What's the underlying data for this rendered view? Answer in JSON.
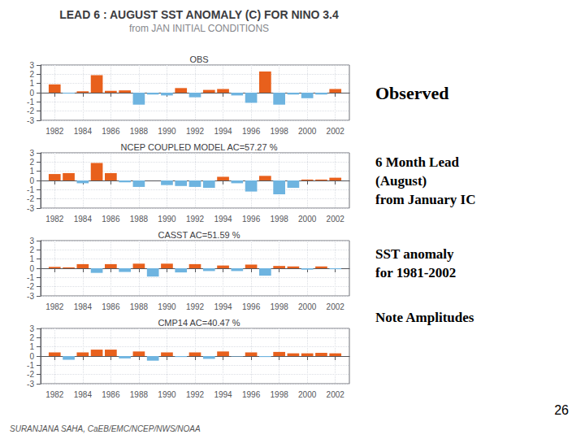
{
  "title": "LEAD 6 : AUGUST SST ANOMALY (C) FOR NINO 3.4",
  "subtitle": "from JAN INITIAL CONDITIONS",
  "annotations": [
    "Observed",
    "6 Month Lead\n(August)\nfrom January IC",
    "SST anomaly\nfor 1981-2002",
    "Note Amplitudes",
    "26",
    "SURANJANA SAHA, CaEB/EMC/NCEP/NWS/NOAA"
  ],
  "chart_data": [
    {
      "type": "bar",
      "title": "OBS",
      "x": [
        1982,
        1983,
        1984,
        1985,
        1986,
        1987,
        1988,
        1989,
        1990,
        1991,
        1992,
        1993,
        1994,
        1995,
        1996,
        1997,
        1998,
        1999,
        2000,
        2001,
        2002
      ],
      "values": [
        0.9,
        -0.1,
        0.15,
        1.9,
        0.2,
        0.25,
        -1.3,
        -0.2,
        -0.3,
        0.5,
        -0.5,
        0.3,
        0.4,
        -0.3,
        -1.1,
        2.3,
        -1.3,
        -0.2,
        -0.6,
        -0.2,
        0.4
      ],
      "colors": [
        "#e8601c",
        "#6eb4e0",
        "#e8601c",
        "#e8601c",
        "#e8601c",
        "#e8601c",
        "#6eb4e0",
        "#6eb4e0",
        "#6eb4e0",
        "#e8601c",
        "#6eb4e0",
        "#e8601c",
        "#e8601c",
        "#6eb4e0",
        "#6eb4e0",
        "#e8601c",
        "#6eb4e0",
        "#6eb4e0",
        "#6eb4e0",
        "#6eb4e0",
        "#e8601c"
      ],
      "xlim": [
        1981,
        2003
      ],
      "xticks": [
        1982,
        1984,
        1986,
        1988,
        1990,
        1992,
        1994,
        1996,
        1998,
        2000,
        2002
      ],
      "ylim": [
        -3,
        3
      ],
      "yticks": [
        -3,
        -2,
        -1,
        0,
        1,
        2,
        3
      ],
      "grid": true
    },
    {
      "type": "bar",
      "title": "NCEP COUPLED MODEL AC=57.27 %",
      "x": [
        1982,
        1983,
        1984,
        1985,
        1986,
        1987,
        1988,
        1989,
        1990,
        1991,
        1992,
        1993,
        1994,
        1995,
        1996,
        1997,
        1998,
        1999,
        2000,
        2001,
        2002
      ],
      "values": [
        0.7,
        0.8,
        -0.3,
        1.9,
        0.8,
        -0.2,
        -0.7,
        0.0,
        -0.5,
        -0.6,
        -0.7,
        -0.8,
        0.4,
        -0.3,
        -1.2,
        0.5,
        -1.5,
        -0.8,
        0.1,
        0.1,
        0.3
      ],
      "colors": [
        "#e8601c",
        "#e8601c",
        "#6eb4e0",
        "#e8601c",
        "#e8601c",
        "#6eb4e0",
        "#6eb4e0",
        "#e8601c",
        "#6eb4e0",
        "#6eb4e0",
        "#6eb4e0",
        "#6eb4e0",
        "#e8601c",
        "#6eb4e0",
        "#6eb4e0",
        "#e8601c",
        "#6eb4e0",
        "#6eb4e0",
        "#e8601c",
        "#e8601c",
        "#e8601c"
      ],
      "xlim": [
        1981,
        2003
      ],
      "xticks": [
        1982,
        1984,
        1986,
        1988,
        1990,
        1992,
        1994,
        1996,
        1998,
        2000,
        2002
      ],
      "ylim": [
        -3,
        3
      ],
      "yticks": [
        -3,
        -2,
        -1,
        0,
        1,
        2,
        3
      ],
      "grid": true
    },
    {
      "type": "bar",
      "title": "CASST AC=51.59 %",
      "x": [
        1982,
        1983,
        1984,
        1985,
        1986,
        1987,
        1988,
        1989,
        1990,
        1991,
        1992,
        1993,
        1994,
        1995,
        1996,
        1997,
        1998,
        1999,
        2000,
        2001,
        2002
      ],
      "values": [
        0.15,
        0.1,
        0.45,
        -0.5,
        0.45,
        -0.4,
        0.5,
        -0.9,
        0.5,
        -0.45,
        0.45,
        -0.3,
        0.3,
        -0.3,
        0.4,
        -0.8,
        0.25,
        0.2,
        -0.15,
        0.2,
        -0.1
      ],
      "colors": [
        "#e8601c",
        "#e8601c",
        "#e8601c",
        "#6eb4e0",
        "#e8601c",
        "#6eb4e0",
        "#e8601c",
        "#6eb4e0",
        "#e8601c",
        "#6eb4e0",
        "#e8601c",
        "#6eb4e0",
        "#e8601c",
        "#6eb4e0",
        "#e8601c",
        "#6eb4e0",
        "#e8601c",
        "#e8601c",
        "#6eb4e0",
        "#e8601c",
        "#6eb4e0"
      ],
      "xlim": [
        1981,
        2003
      ],
      "xticks": [
        1982,
        1984,
        1986,
        1988,
        1990,
        1992,
        1994,
        1996,
        1998,
        2000,
        2002
      ],
      "ylim": [
        -3,
        3
      ],
      "yticks": [
        -3,
        -2,
        -1,
        0,
        1,
        2,
        3
      ],
      "grid": true
    },
    {
      "type": "bar",
      "title": "CMP14 AC=40.47 %",
      "x": [
        1982,
        1983,
        1984,
        1985,
        1986,
        1987,
        1988,
        1989,
        1990,
        1991,
        1992,
        1993,
        1994,
        1995,
        1996,
        1997,
        1998,
        1999,
        2000,
        2001,
        2002
      ],
      "values": [
        0.4,
        -0.4,
        0.4,
        0.7,
        0.7,
        -0.25,
        0.5,
        -0.5,
        0.4,
        -0.1,
        0.4,
        -0.3,
        0.5,
        -0.05,
        0.4,
        -0.1,
        0.45,
        0.3,
        0.3,
        0.35,
        0.3
      ],
      "colors": [
        "#e8601c",
        "#6eb4e0",
        "#e8601c",
        "#e8601c",
        "#e8601c",
        "#6eb4e0",
        "#e8601c",
        "#6eb4e0",
        "#e8601c",
        "#6eb4e0",
        "#e8601c",
        "#6eb4e0",
        "#e8601c",
        "#6eb4e0",
        "#e8601c",
        "#6eb4e0",
        "#e8601c",
        "#e8601c",
        "#e8601c",
        "#e8601c",
        "#e8601c"
      ],
      "xlim": [
        1981,
        2003
      ],
      "xticks": [
        1982,
        1984,
        1986,
        1988,
        1990,
        1992,
        1994,
        1996,
        1998,
        2000,
        2002
      ],
      "ylim": [
        -3,
        3
      ],
      "yticks": [
        -3,
        -2,
        -1,
        0,
        1,
        2,
        3
      ],
      "grid": true
    }
  ]
}
